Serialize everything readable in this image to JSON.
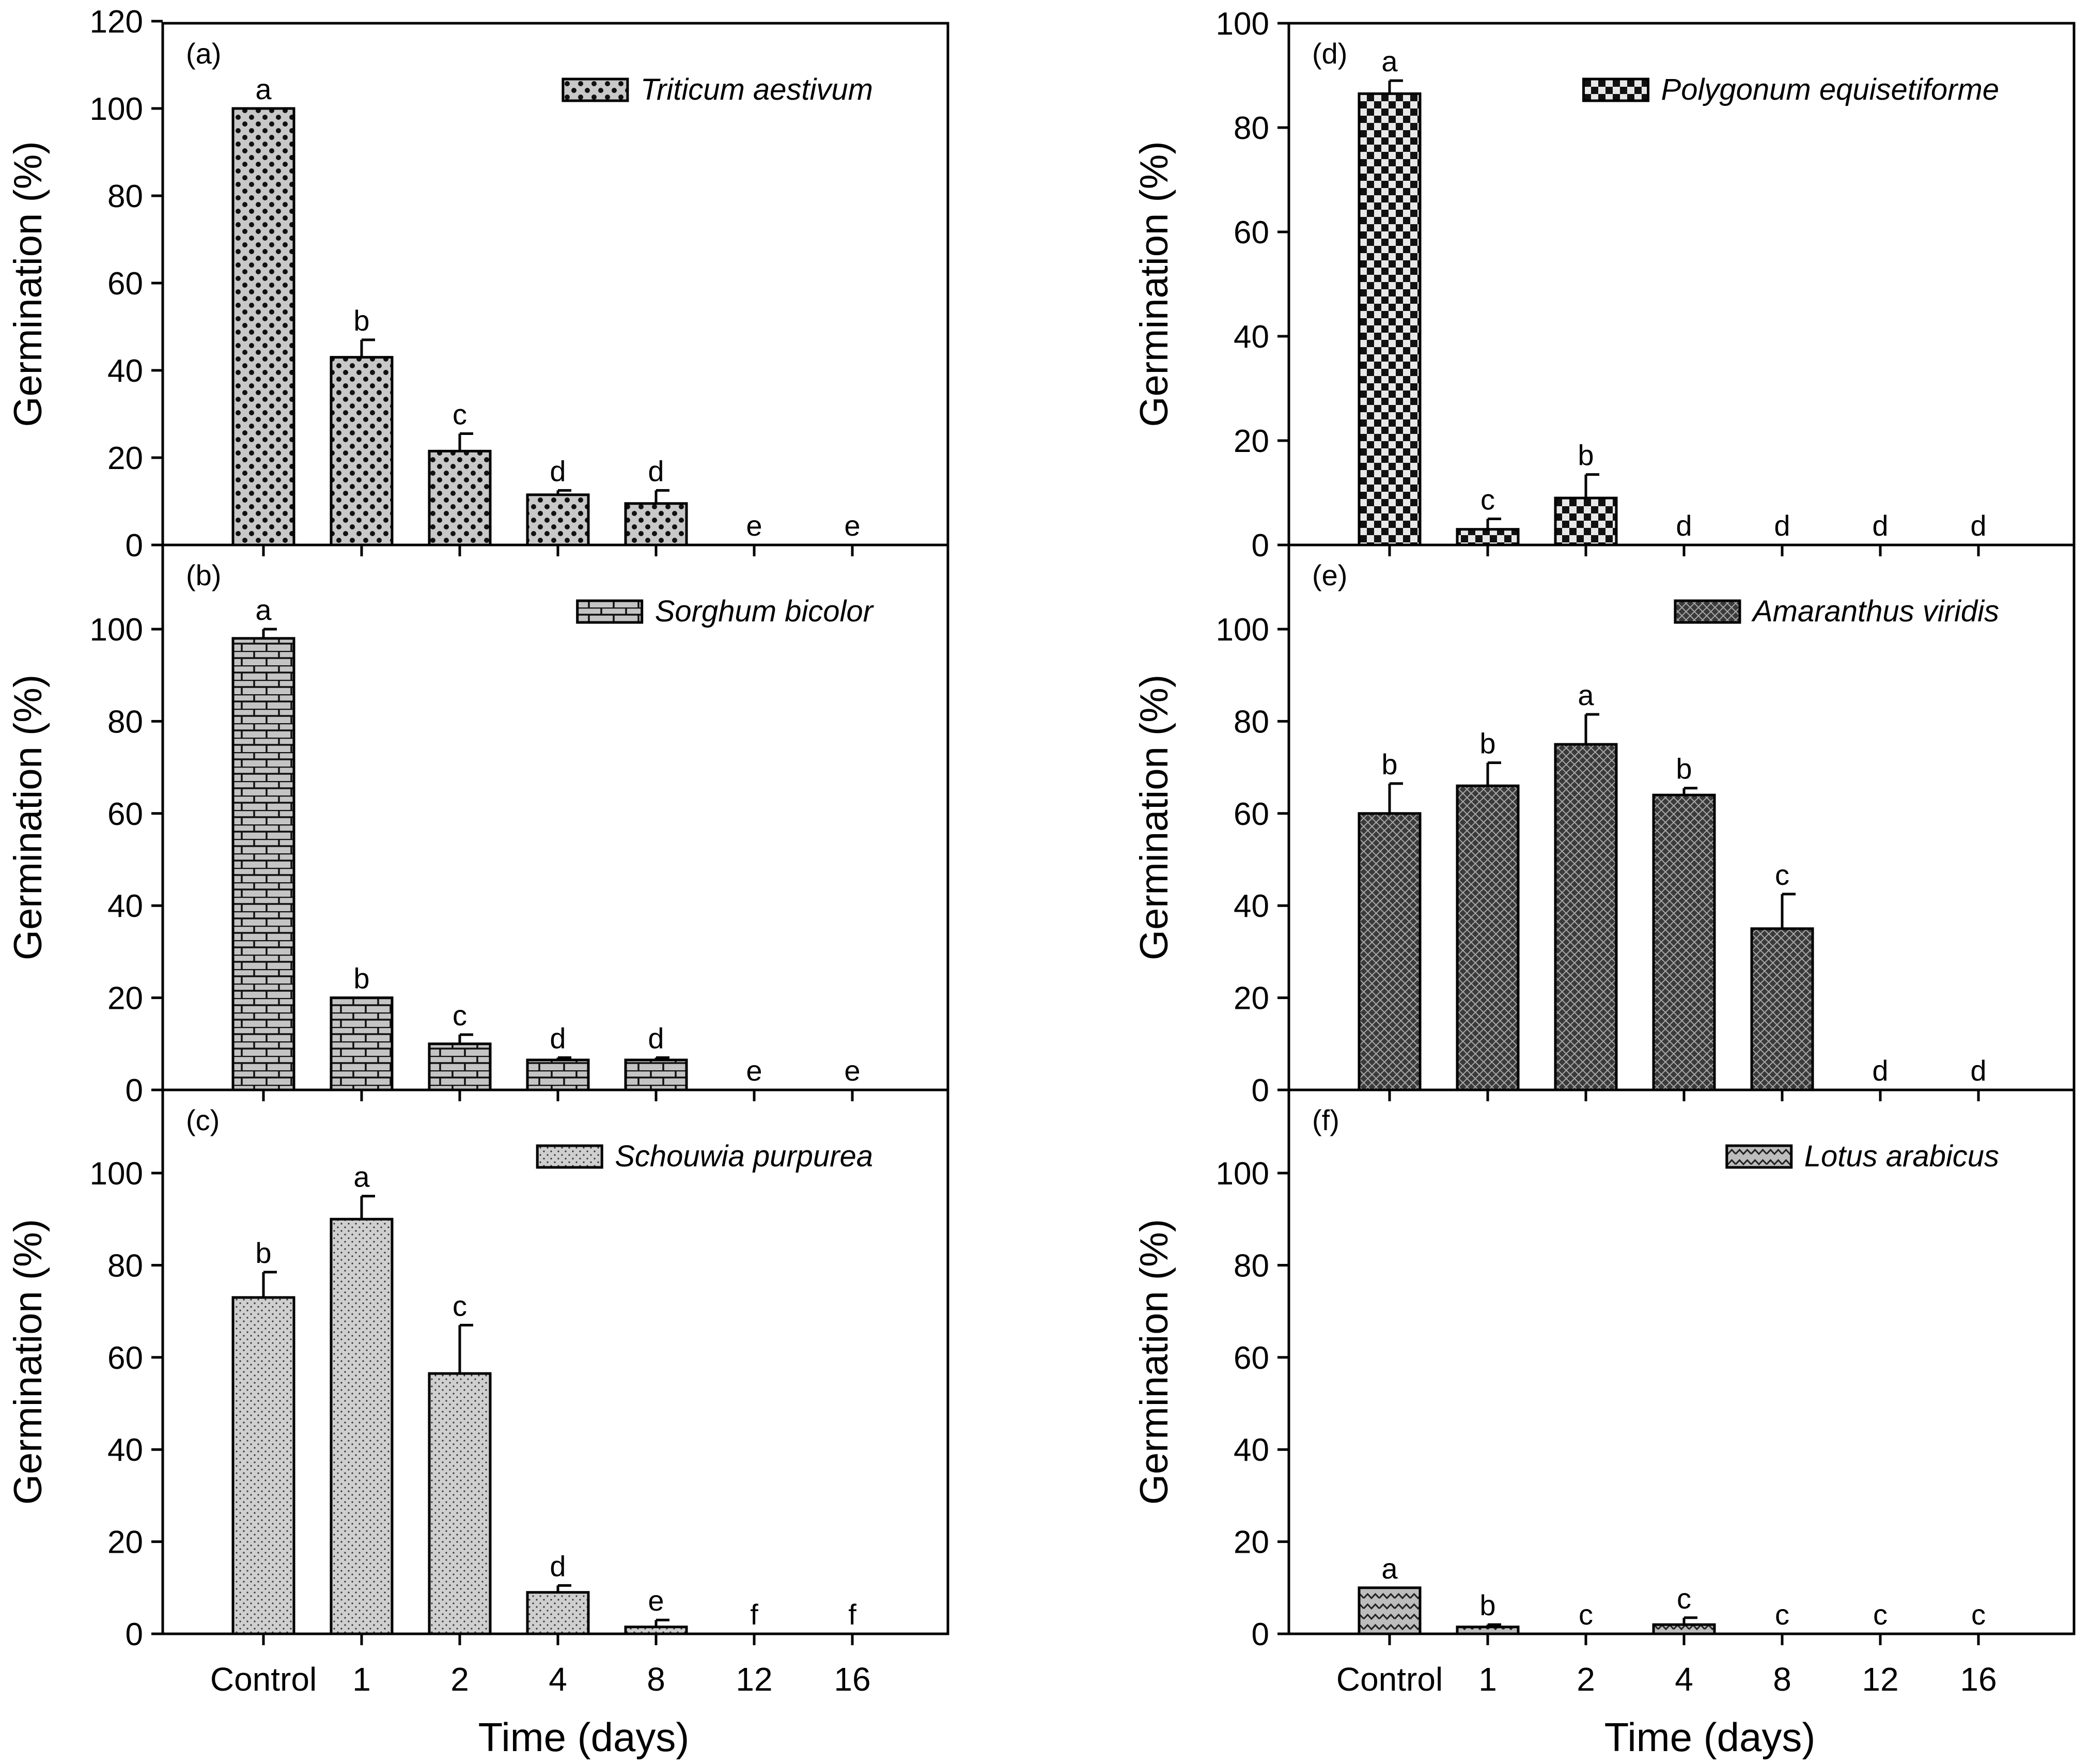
{
  "colors": {
    "background": "#ffffff",
    "ink": "#000000",
    "fill_light": "#d0d0d0",
    "fill_dark": "#555555"
  },
  "figure": {
    "xlabel": "Time (days)",
    "ylabel": "Germination (%)"
  },
  "chart_data": [
    {
      "type": "bar",
      "panel_label": "(a)",
      "legend": "Triticum aestivum",
      "pattern": "dots",
      "categories": [
        "Control",
        "1",
        "2",
        "4",
        "8",
        "12",
        "16"
      ],
      "values": [
        100,
        43,
        21.5,
        11.5,
        9.5,
        0,
        0
      ],
      "errors": [
        0,
        4,
        4,
        1,
        3,
        0,
        0
      ],
      "letters": [
        "a",
        "b",
        "c",
        "d",
        "d",
        "e",
        "e"
      ],
      "ylim": [
        0,
        120
      ],
      "yticks": [
        0,
        20,
        40,
        60,
        80,
        100,
        120
      ],
      "xlabel": "Time (days)",
      "ylabel": "Germination (%)"
    },
    {
      "type": "bar",
      "panel_label": "(b)",
      "legend": "Sorghum bicolor",
      "pattern": "bricks",
      "categories": [
        "Control",
        "1",
        "2",
        "4",
        "8",
        "12",
        "16"
      ],
      "values": [
        98,
        20,
        10,
        6.5,
        6.5,
        0,
        0
      ],
      "errors": [
        2,
        0,
        2,
        0.5,
        0.5,
        0,
        0
      ],
      "letters": [
        "a",
        "b",
        "c",
        "d",
        "d",
        "e",
        "e"
      ],
      "ylim": [
        0,
        120
      ],
      "yticks": [
        0,
        20,
        40,
        60,
        80,
        100
      ],
      "xlabel": "Time (days)",
      "ylabel": "Germination (%)"
    },
    {
      "type": "bar",
      "panel_label": "(c)",
      "legend": "Schouwia purpurea",
      "pattern": "fine",
      "categories": [
        "Control",
        "1",
        "2",
        "4",
        "8",
        "12",
        "16"
      ],
      "values": [
        73,
        90,
        56.5,
        9,
        1.5,
        0,
        0
      ],
      "errors": [
        5.5,
        5,
        10.5,
        1.5,
        1.5,
        0,
        0
      ],
      "letters": [
        "b",
        "a",
        "c",
        "d",
        "e",
        "f",
        "f"
      ],
      "ylim": [
        0,
        120
      ],
      "yticks": [
        0,
        20,
        40,
        60,
        80,
        100
      ],
      "xlabel": "Time (days)",
      "ylabel": "Germination (%)"
    },
    {
      "type": "bar",
      "panel_label": "(d)",
      "legend": "Polygonum equisetiforme",
      "pattern": "checker",
      "categories": [
        "Control",
        "1",
        "2",
        "4",
        "8",
        "12",
        "16"
      ],
      "values": [
        86.5,
        3,
        9,
        0,
        0,
        0,
        0
      ],
      "errors": [
        2.5,
        2,
        4.5,
        0,
        0,
        0,
        0
      ],
      "letters": [
        "a",
        "c",
        "b",
        "d",
        "d",
        "d",
        "d"
      ],
      "ylim": [
        0,
        100
      ],
      "yticks": [
        0,
        20,
        40,
        60,
        80,
        100
      ],
      "xlabel": "Time (days)",
      "ylabel": "Germination (%)"
    },
    {
      "type": "bar",
      "panel_label": "(e)",
      "legend": "Amaranthus viridis",
      "pattern": "crosshatch",
      "categories": [
        "Control",
        "1",
        "2",
        "4",
        "8",
        "12",
        "16"
      ],
      "values": [
        60,
        66,
        75,
        64,
        35,
        0,
        0
      ],
      "errors": [
        6.5,
        5,
        6.5,
        1.5,
        7.5,
        0,
        0
      ],
      "letters": [
        "b",
        "b",
        "a",
        "b",
        "c",
        "d",
        "d"
      ],
      "ylim": [
        0,
        120
      ],
      "yticks": [
        0,
        20,
        40,
        60,
        80,
        100
      ],
      "xlabel": "Time (days)",
      "ylabel": "Germination (%)"
    },
    {
      "type": "bar",
      "panel_label": "(f)",
      "legend": "Lotus arabicus",
      "pattern": "zigzag",
      "categories": [
        "Control",
        "1",
        "2",
        "4",
        "8",
        "12",
        "16"
      ],
      "values": [
        10,
        1.5,
        0,
        2,
        0,
        0,
        0
      ],
      "errors": [
        0,
        0.5,
        0,
        1.5,
        0,
        0,
        0
      ],
      "letters": [
        "a",
        "b",
        "c",
        "c",
        "c",
        "c",
        "c"
      ],
      "ylim": [
        0,
        120
      ],
      "yticks": [
        0,
        20,
        40,
        60,
        80,
        100
      ],
      "xlabel": "Time (days)",
      "ylabel": "Germination (%)"
    }
  ]
}
